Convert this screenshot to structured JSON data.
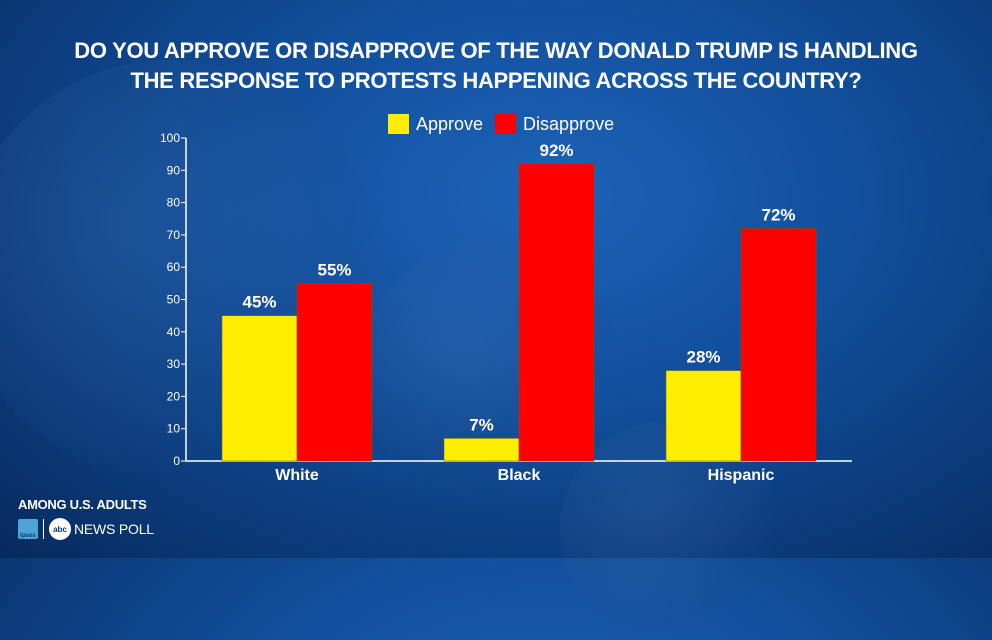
{
  "title_lines": [
    "DO YOU APPROVE OR DISAPPROVE OF THE WAY DONALD TRUMP IS HANDLING",
    "THE RESPONSE TO PROTESTS HAPPENING ACROSS THE COUNTRY?"
  ],
  "legend": [
    {
      "label": "Approve",
      "color": "#ffee00"
    },
    {
      "label": "Disapprove",
      "color": "#ff0000"
    }
  ],
  "footer": {
    "among": "AMONG U.S. ADULTS",
    "ipsos": "Ipsos",
    "abc": "abc",
    "poll": "NEWS POLL"
  },
  "chart_data": {
    "type": "bar",
    "categories": [
      "White",
      "Black",
      "Hispanic"
    ],
    "series": [
      {
        "name": "Approve",
        "values": [
          45,
          7,
          28
        ],
        "labels": [
          "45%",
          "7%",
          "28%"
        ],
        "color": "#ffee00"
      },
      {
        "name": "Disapprove",
        "values": [
          55,
          92,
          72
        ],
        "labels": [
          "55%",
          "92%",
          "72%"
        ],
        "color": "#ff0000"
      }
    ],
    "ylim": [
      0,
      100
    ],
    "yticks": [
      0,
      10,
      20,
      30,
      40,
      50,
      60,
      70,
      80,
      90,
      100
    ],
    "ytick_labels": [
      "0",
      "10",
      "20",
      "30",
      "40",
      "50",
      "60",
      "70",
      "80",
      "90",
      "100"
    ],
    "grid": false,
    "legend_position": "top"
  }
}
